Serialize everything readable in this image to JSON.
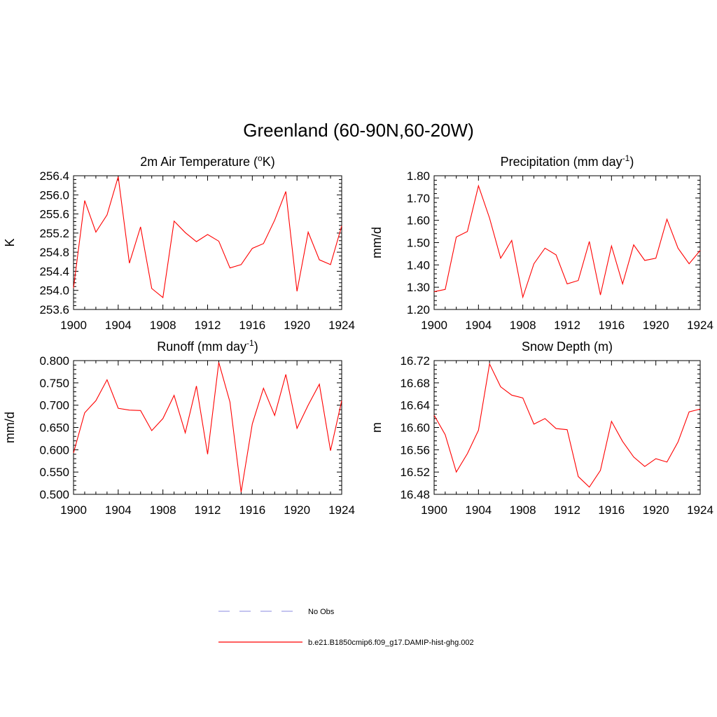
{
  "figure": {
    "title": "Greenland (60-90N,60-20W)"
  },
  "legend": {
    "items": [
      {
        "label": "No Obs",
        "color": "#a0a0e6",
        "dash": true
      },
      {
        "label": "b.e21.B1850cmip6.f09_g17.DAMIP-hist-ghg.002",
        "color": "#ff0000",
        "dash": false
      }
    ]
  },
  "chart_data": [
    {
      "type": "line",
      "title": "2m Air Temperature (",
      "title_sup": "o",
      "title_tail": "K)",
      "ylabel": "K",
      "xlim": [
        1900,
        1924
      ],
      "ylim": [
        253.6,
        256.4
      ],
      "xticks": [
        "1900",
        "1904",
        "1908",
        "1912",
        "1916",
        "1920",
        "1924"
      ],
      "yticks": [
        "253.6",
        "254.0",
        "254.4",
        "254.8",
        "255.2",
        "255.6",
        "256.0",
        "256.4"
      ],
      "series": [
        {
          "color": "#ff0000",
          "x": [
            1900,
            1901,
            1902,
            1903,
            1904,
            1905,
            1906,
            1907,
            1908,
            1909,
            1910,
            1911,
            1912,
            1913,
            1914,
            1915,
            1916,
            1917,
            1918,
            1919,
            1920,
            1921,
            1922,
            1923,
            1924
          ],
          "y": [
            254.05,
            255.88,
            255.22,
            255.58,
            256.38,
            254.57,
            255.33,
            254.04,
            253.85,
            255.45,
            255.21,
            255.02,
            255.17,
            255.03,
            254.47,
            254.54,
            254.88,
            254.98,
            255.47,
            256.07,
            253.98,
            255.22,
            254.64,
            254.54,
            255.35
          ]
        }
      ]
    },
    {
      "type": "line",
      "title": "Precipitation (mm day",
      "title_sup": "-1",
      "title_tail": ")",
      "ylabel": "mm/d",
      "xlim": [
        1900,
        1924
      ],
      "ylim": [
        1.2,
        1.8
      ],
      "xticks": [
        "1900",
        "1904",
        "1908",
        "1912",
        "1916",
        "1920",
        "1924"
      ],
      "yticks": [
        "1.20",
        "1.30",
        "1.40",
        "1.50",
        "1.60",
        "1.70",
        "1.80"
      ],
      "series": [
        {
          "color": "#ff0000",
          "x": [
            1900,
            1901,
            1902,
            1903,
            1904,
            1905,
            1906,
            1907,
            1908,
            1909,
            1910,
            1911,
            1912,
            1913,
            1914,
            1915,
            1916,
            1917,
            1918,
            1919,
            1920,
            1921,
            1922,
            1923,
            1924
          ],
          "y": [
            1.28,
            1.29,
            1.525,
            1.55,
            1.755,
            1.61,
            1.43,
            1.51,
            1.255,
            1.405,
            1.475,
            1.445,
            1.315,
            1.33,
            1.505,
            1.265,
            1.485,
            1.315,
            1.49,
            1.42,
            1.43,
            1.605,
            1.475,
            1.405,
            1.465
          ]
        }
      ]
    },
    {
      "type": "line",
      "title": "Runoff (mm day",
      "title_sup": "-1",
      "title_tail": ")",
      "ylabel": "mm/d",
      "xlim": [
        1900,
        1924
      ],
      "ylim": [
        0.5,
        0.8
      ],
      "xticks": [
        "1900",
        "1904",
        "1908",
        "1912",
        "1916",
        "1920",
        "1924"
      ],
      "yticks": [
        "0.500",
        "0.550",
        "0.600",
        "0.650",
        "0.700",
        "0.750",
        "0.800"
      ],
      "series": [
        {
          "color": "#ff0000",
          "x": [
            1900,
            1901,
            1902,
            1903,
            1904,
            1905,
            1906,
            1907,
            1908,
            1909,
            1910,
            1911,
            1912,
            1913,
            1914,
            1915,
            1916,
            1917,
            1918,
            1919,
            1920,
            1921,
            1922,
            1923,
            1924
          ],
          "y": [
            0.593,
            0.683,
            0.71,
            0.757,
            0.693,
            0.689,
            0.688,
            0.643,
            0.67,
            0.722,
            0.638,
            0.743,
            0.59,
            0.796,
            0.707,
            0.505,
            0.658,
            0.738,
            0.677,
            0.769,
            0.648,
            0.7,
            0.747,
            0.598,
            0.71
          ]
        }
      ]
    },
    {
      "type": "line",
      "title": "Snow Depth (m)",
      "title_sup": "",
      "title_tail": "",
      "ylabel": "m",
      "xlim": [
        1900,
        1924
      ],
      "ylim": [
        16.48,
        16.72
      ],
      "xticks": [
        "1900",
        "1904",
        "1908",
        "1912",
        "1916",
        "1920",
        "1924"
      ],
      "yticks": [
        "16.48",
        "16.52",
        "16.56",
        "16.60",
        "16.64",
        "16.68",
        "16.72"
      ],
      "series": [
        {
          "color": "#ff0000",
          "x": [
            1900,
            1901,
            1902,
            1903,
            1904,
            1905,
            1906,
            1907,
            1908,
            1909,
            1910,
            1911,
            1912,
            1913,
            1914,
            1915,
            1916,
            1917,
            1918,
            1919,
            1920,
            1921,
            1922,
            1923,
            1924
          ],
          "y": [
            16.622,
            16.587,
            16.52,
            16.553,
            16.595,
            16.714,
            16.673,
            16.658,
            16.653,
            16.606,
            16.616,
            16.598,
            16.596,
            16.512,
            16.493,
            16.523,
            16.611,
            16.575,
            16.547,
            16.53,
            16.544,
            16.538,
            16.574,
            16.628,
            16.633
          ]
        }
      ]
    }
  ]
}
